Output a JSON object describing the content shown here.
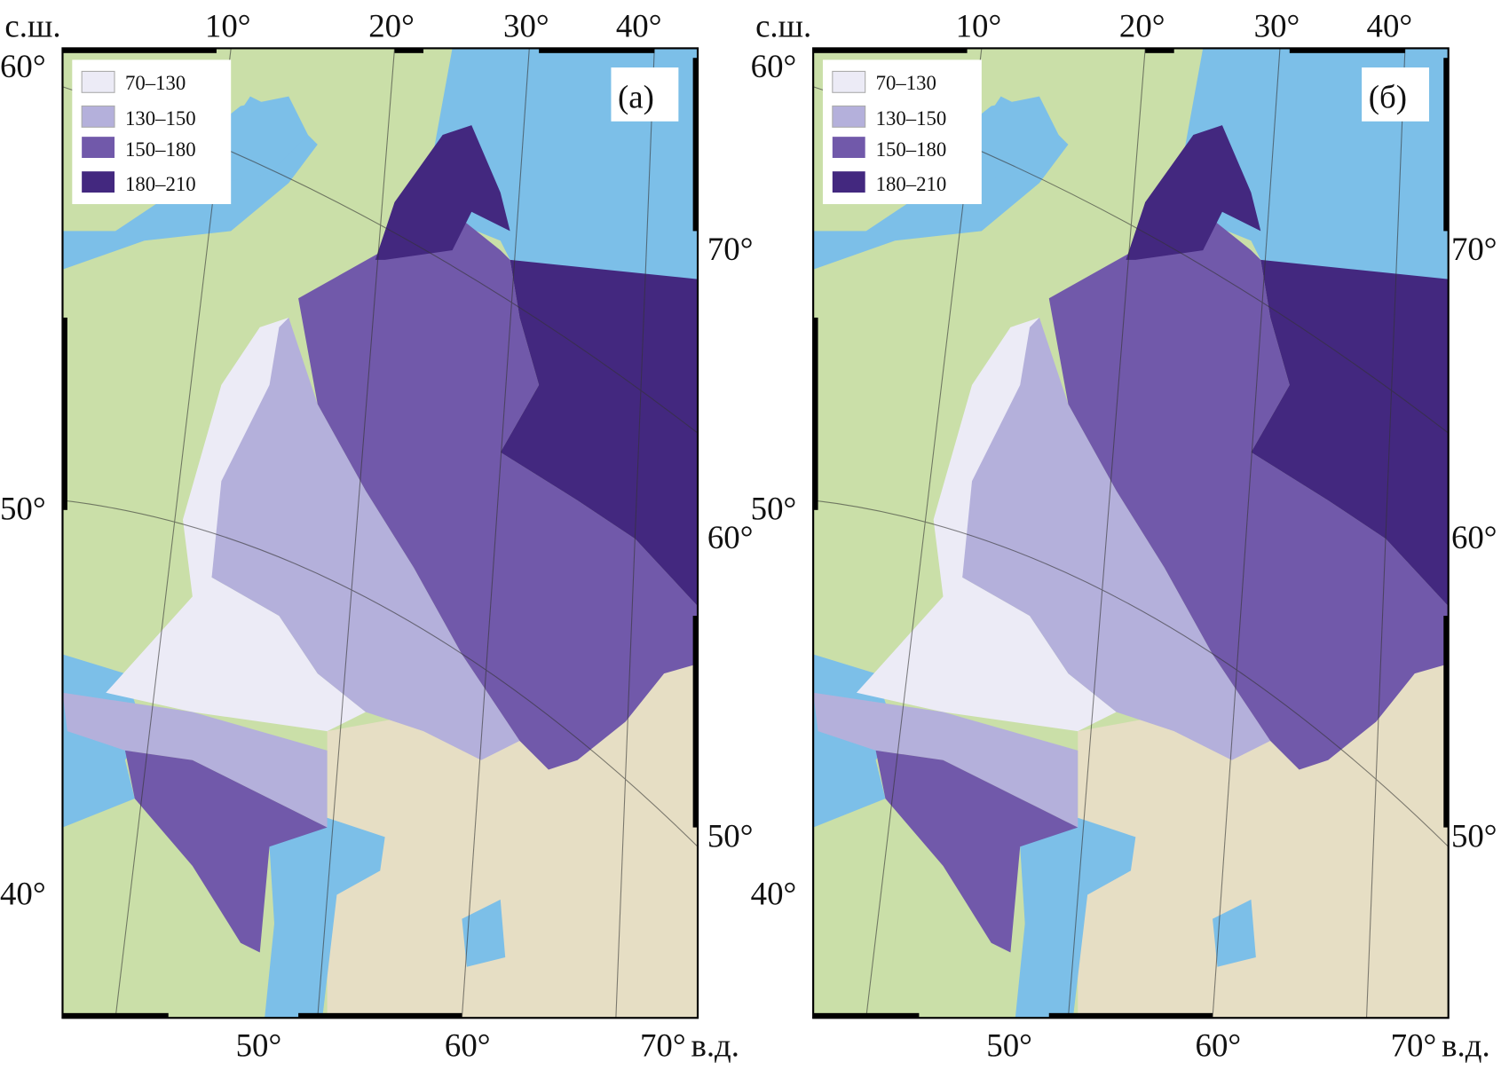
{
  "colors": {
    "sea": "#7cbfe8",
    "land": "#cadfa8",
    "desert": "#e6dec4",
    "zone_70_130": "#ecebf6",
    "zone_130_150": "#b4b0db",
    "zone_150_180": "#7159aa",
    "zone_180_210": "#43287f"
  },
  "legend": [
    "70–130",
    "130–150",
    "150–180",
    "180–210"
  ],
  "axes": {
    "lat_unit": "с.ш.",
    "lon_unit": "в.д.",
    "top": [
      "10°",
      "20°",
      "30°",
      "40°"
    ],
    "left": [
      "60°",
      "50°",
      "40°"
    ],
    "right": [
      "70°",
      "60°",
      "50°"
    ],
    "bottom": [
      "50°",
      "60°",
      "70°"
    ]
  },
  "panels": [
    {
      "label": "(a)"
    },
    {
      "label": "(б)"
    }
  ]
}
